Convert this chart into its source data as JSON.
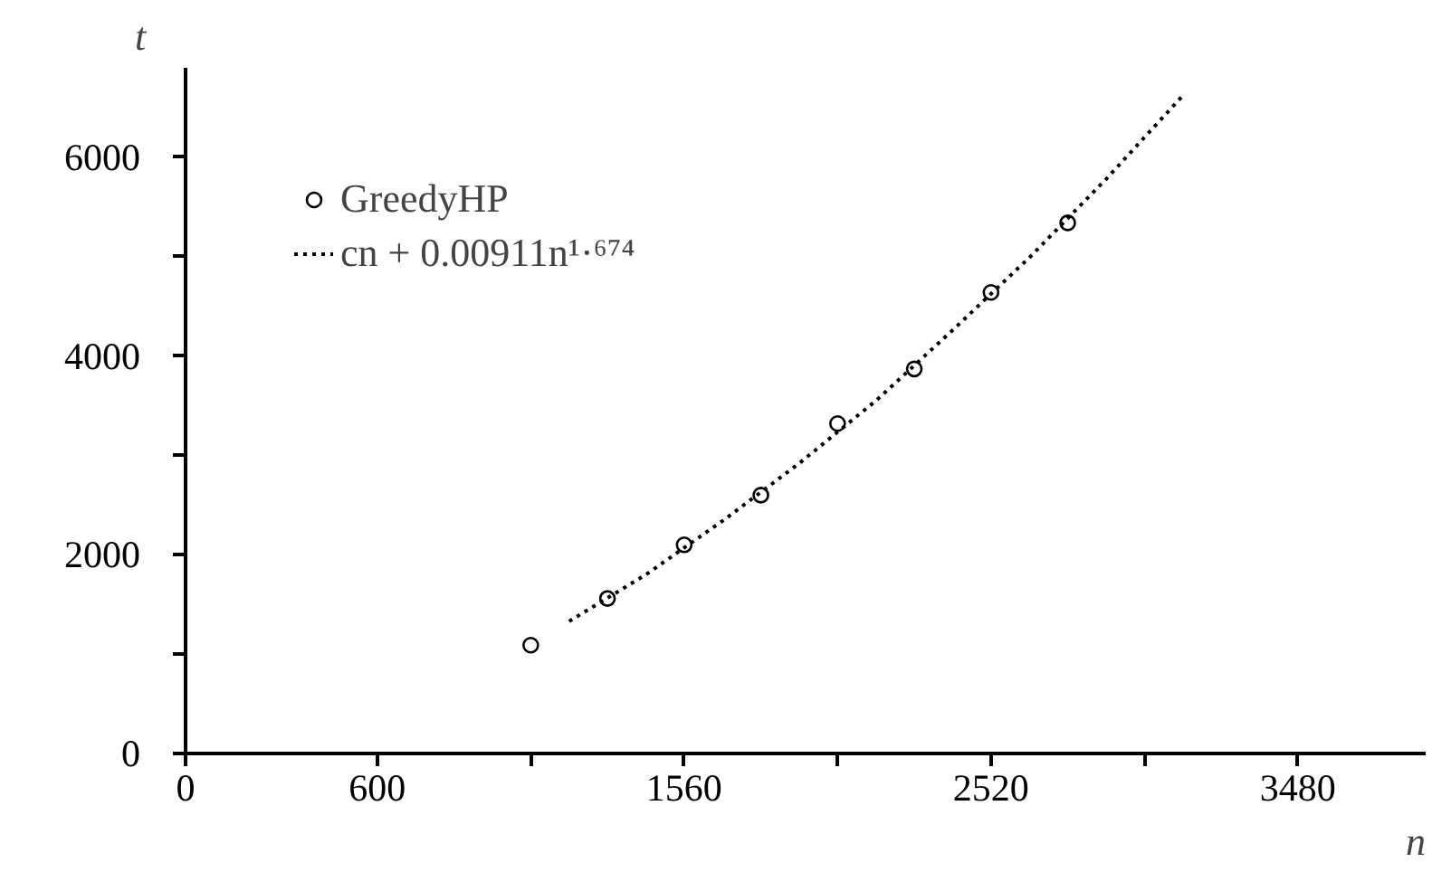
{
  "chart_data": {
    "type": "scatter",
    "xlabel": "n",
    "ylabel": "t",
    "xlim": [
      0,
      3880
    ],
    "ylim": [
      0,
      6900
    ],
    "xticks": [
      0,
      600,
      {
        "value": 1080,
        "label": null
      },
      1560,
      {
        "value": 2040,
        "label": null
      },
      2520,
      {
        "value": 3000,
        "label": null
      },
      3480
    ],
    "yticks": [
      0,
      {
        "value": 1000,
        "label": null
      },
      2000,
      {
        "value": 3000,
        "label": null
      },
      4000,
      {
        "value": 5000,
        "label": null
      },
      6000
    ],
    "grid": false,
    "legend": "top left",
    "series": [
      {
        "name": "GreedyHP",
        "marker": "circle",
        "color": "#000000",
        "x": [
          1080,
          1320,
          1560,
          1800,
          2040,
          2280,
          2520,
          2760
        ],
        "values": [
          1090,
          1560,
          2100,
          2600,
          3320,
          3870,
          4640,
          5340
        ]
      },
      {
        "name": "cn + 0.00911n¹·⁶⁷⁴",
        "type": "line",
        "line_style": "dotted",
        "color": "#000000",
        "x": [
          1200,
          1440,
          1680,
          1920,
          2160,
          2400,
          2640,
          2880,
          3000,
          3120
        ],
        "values": [
          1330,
          1800,
          2340,
          2920,
          3550,
          4260,
          4990,
          5780,
          6200,
          6620
        ]
      }
    ]
  }
}
